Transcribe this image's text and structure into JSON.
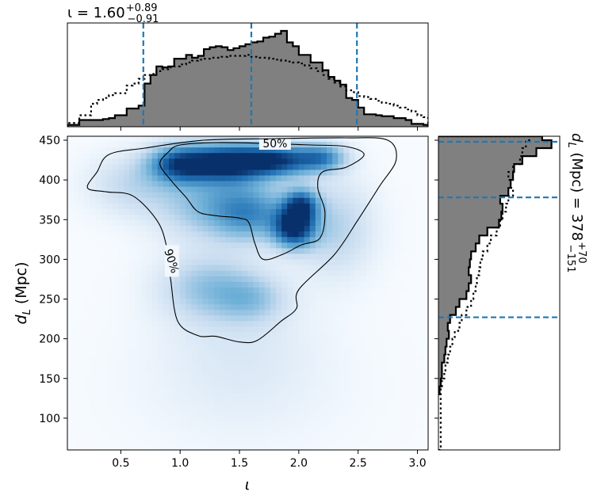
{
  "chart_data": [
    {
      "panel": "top-marginal",
      "type": "histogram",
      "title_html_parts": {
        "symbol": "ι",
        "equals": " = ",
        "median": "1.60",
        "plus": "+0.89",
        "minus": "−0.91"
      },
      "title": "ι = 1.60 +0.89 −0.91",
      "xlim": [
        0.05,
        3.09
      ],
      "quantile_lines": [
        0.69,
        1.6,
        2.49
      ],
      "bin_edges": [
        0.05,
        0.1,
        0.15,
        0.2,
        0.25,
        0.3,
        0.35,
        0.4,
        0.45,
        0.5,
        0.55,
        0.6,
        0.65,
        0.7,
        0.75,
        0.8,
        0.85,
        0.9,
        0.95,
        1.0,
        1.05,
        1.1,
        1.15,
        1.2,
        1.25,
        1.3,
        1.35,
        1.4,
        1.45,
        1.5,
        1.55,
        1.6,
        1.65,
        1.7,
        1.75,
        1.8,
        1.85,
        1.9,
        1.95,
        2.0,
        2.05,
        2.1,
        2.15,
        2.2,
        2.25,
        2.3,
        2.35,
        2.4,
        2.45,
        2.5,
        2.55,
        2.6,
        2.65,
        2.7,
        2.75,
        2.8,
        2.85,
        2.9,
        2.95,
        3.0,
        3.05,
        3.09
      ],
      "filled_density": [
        0.02,
        0.02,
        0.07,
        0.07,
        0.07,
        0.07,
        0.08,
        0.09,
        0.12,
        0.12,
        0.19,
        0.19,
        0.22,
        0.45,
        0.54,
        0.63,
        0.62,
        0.63,
        0.71,
        0.71,
        0.75,
        0.72,
        0.74,
        0.81,
        0.83,
        0.84,
        0.83,
        0.8,
        0.82,
        0.84,
        0.86,
        0.88,
        0.89,
        0.93,
        0.94,
        0.97,
        1.0,
        0.88,
        0.84,
        0.75,
        0.75,
        0.67,
        0.67,
        0.59,
        0.52,
        0.48,
        0.44,
        0.3,
        0.28,
        0.2,
        0.13,
        0.13,
        0.12,
        0.11,
        0.11,
        0.09,
        0.09,
        0.07,
        0.03,
        0.03,
        0.02
      ],
      "dotted_density": [
        0.04,
        0.04,
        0.12,
        0.12,
        0.24,
        0.28,
        0.3,
        0.33,
        0.35,
        0.35,
        0.43,
        0.45,
        0.5,
        0.54,
        0.55,
        0.58,
        0.6,
        0.62,
        0.63,
        0.65,
        0.67,
        0.69,
        0.7,
        0.71,
        0.72,
        0.72,
        0.73,
        0.74,
        0.74,
        0.74,
        0.75,
        0.73,
        0.72,
        0.72,
        0.71,
        0.7,
        0.69,
        0.68,
        0.67,
        0.66,
        0.64,
        0.61,
        0.58,
        0.54,
        0.5,
        0.46,
        0.42,
        0.38,
        0.36,
        0.32,
        0.31,
        0.29,
        0.27,
        0.25,
        0.24,
        0.22,
        0.2,
        0.18,
        0.16,
        0.12,
        0.1
      ]
    },
    {
      "panel": "joint-density",
      "type": "heatmap",
      "xlabel": "ι",
      "ylabel": "d_L (Mpc)",
      "xlim": [
        0.05,
        3.09
      ],
      "ylim": [
        60,
        455
      ],
      "x_ticks": [
        0.5,
        1.0,
        1.5,
        2.0,
        2.5,
        3.0
      ],
      "x_tick_labels": [
        "0.5",
        "1.0",
        "1.5",
        "2.0",
        "2.5",
        "3.0"
      ],
      "y_ticks": [
        100,
        150,
        200,
        250,
        300,
        350,
        400,
        450
      ],
      "y_tick_labels": [
        "100",
        "150",
        "200",
        "250",
        "300",
        "350",
        "400",
        "450"
      ],
      "colormap": [
        "#f7fbff",
        "#c6dbef",
        "#6baed6",
        "#2171b5",
        "#08306b"
      ],
      "density_blobs": [
        {
          "x": 1.4,
          "y": 422,
          "sx": 0.22,
          "sy": 16,
          "w": 1.0
        },
        {
          "x": 1.0,
          "y": 420,
          "sx": 0.18,
          "sy": 16,
          "w": 0.85
        },
        {
          "x": 1.82,
          "y": 425,
          "sx": 0.22,
          "sy": 14,
          "w": 0.9
        },
        {
          "x": 2.2,
          "y": 428,
          "sx": 0.14,
          "sy": 12,
          "w": 0.55
        },
        {
          "x": 1.96,
          "y": 340,
          "sx": 0.12,
          "sy": 17,
          "w": 1.0
        },
        {
          "x": 2.02,
          "y": 368,
          "sx": 0.1,
          "sy": 14,
          "w": 0.75
        },
        {
          "x": 1.35,
          "y": 370,
          "sx": 0.35,
          "sy": 30,
          "w": 0.45
        },
        {
          "x": 1.6,
          "y": 355,
          "sx": 0.2,
          "sy": 22,
          "w": 0.35
        },
        {
          "x": 1.25,
          "y": 265,
          "sx": 0.28,
          "sy": 28,
          "w": 0.32
        },
        {
          "x": 1.6,
          "y": 250,
          "sx": 0.2,
          "sy": 20,
          "w": 0.25
        },
        {
          "x": 2.3,
          "y": 340,
          "sx": 0.22,
          "sy": 40,
          "w": 0.25
        },
        {
          "x": 0.6,
          "y": 395,
          "sx": 0.25,
          "sy": 25,
          "w": 0.2
        },
        {
          "x": 1.5,
          "y": 200,
          "sx": 0.45,
          "sy": 50,
          "w": 0.09
        },
        {
          "x": 1.5,
          "y": 130,
          "sx": 0.6,
          "sy": 50,
          "w": 0.05
        }
      ],
      "contours": [
        {
          "label": "50%",
          "label_at": [
            1.8,
            446
          ],
          "points": [
            [
              0.9,
              435
            ],
            [
              1.0,
              444
            ],
            [
              1.3,
              447
            ],
            [
              1.7,
              446
            ],
            [
              2.1,
              444
            ],
            [
              2.4,
              442
            ],
            [
              2.55,
              432
            ],
            [
              2.4,
              416
            ],
            [
              2.2,
              410
            ],
            [
              2.16,
              390
            ],
            [
              2.22,
              360
            ],
            [
              2.18,
              327
            ],
            [
              2.02,
              318
            ],
            [
              1.86,
              306
            ],
            [
              1.7,
              300
            ],
            [
              1.63,
              320
            ],
            [
              1.58,
              346
            ],
            [
              1.5,
              352
            ],
            [
              1.3,
              355
            ],
            [
              1.15,
              360
            ],
            [
              1.05,
              378
            ],
            [
              0.92,
              400
            ],
            [
              0.83,
              420
            ]
          ]
        },
        {
          "label": "90%",
          "label_at": [
            0.93,
            298
          ],
          "points": [
            [
              0.4,
              432
            ],
            [
              0.7,
              440
            ],
            [
              1.2,
              450
            ],
            [
              1.8,
              452
            ],
            [
              2.4,
              453
            ],
            [
              2.75,
              450
            ],
            [
              2.82,
              425
            ],
            [
              2.68,
              392
            ],
            [
              2.5,
              350
            ],
            [
              2.3,
              306
            ],
            [
              2.0,
              262
            ],
            [
              1.98,
              238
            ],
            [
              1.85,
              222
            ],
            [
              1.65,
              198
            ],
            [
              1.5,
              196
            ],
            [
              1.3,
              203
            ],
            [
              1.15,
              204
            ],
            [
              0.98,
              222
            ],
            [
              0.92,
              275
            ],
            [
              0.88,
              320
            ],
            [
              0.8,
              350
            ],
            [
              0.6,
              380
            ],
            [
              0.38,
              385
            ],
            [
              0.22,
              390
            ],
            [
              0.3,
              410
            ]
          ]
        }
      ]
    },
    {
      "panel": "right-marginal",
      "type": "histogram",
      "orientation": "horizontal",
      "label_parts": {
        "symbol": "d",
        "sub": "L",
        "unit": " (Mpc) = ",
        "median": "378",
        "plus": "+70",
        "minus": "−151"
      },
      "title": "d_L (Mpc) = 378 +70 −151",
      "ylim": [
        60,
        455
      ],
      "quantile_lines": [
        227,
        378,
        448
      ],
      "bin_edges": [
        130,
        140,
        150,
        160,
        170,
        180,
        190,
        200,
        210,
        220,
        230,
        240,
        250,
        260,
        270,
        280,
        290,
        300,
        310,
        320,
        330,
        340,
        350,
        360,
        370,
        380,
        390,
        400,
        410,
        420,
        430,
        440,
        450,
        455
      ],
      "filled_density": [
        0.01,
        0.02,
        0.03,
        0.03,
        0.05,
        0.06,
        0.07,
        0.09,
        0.08,
        0.1,
        0.15,
        0.18,
        0.24,
        0.26,
        0.28,
        0.26,
        0.27,
        0.28,
        0.32,
        0.35,
        0.42,
        0.52,
        0.54,
        0.55,
        0.53,
        0.6,
        0.62,
        0.64,
        0.65,
        0.72,
        0.84,
        0.97,
        0.89
      ],
      "dotted_density": [
        0.02,
        0.03,
        0.05,
        0.06,
        0.08,
        0.1,
        0.12,
        0.14,
        0.18,
        0.2,
        0.24,
        0.28,
        0.3,
        0.32,
        0.33,
        0.35,
        0.36,
        0.38,
        0.42,
        0.45,
        0.5,
        0.53,
        0.55,
        0.58,
        0.6,
        0.64,
        0.62,
        0.6,
        0.64,
        0.7,
        0.72,
        0.75,
        0.78
      ]
    }
  ]
}
